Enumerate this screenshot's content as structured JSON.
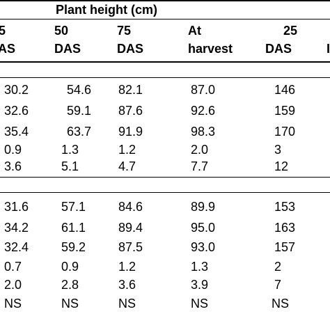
{
  "table": {
    "group_header": "Plant height (cm)",
    "columns": [
      {
        "line1": "5",
        "line2": "DAS"
      },
      {
        "line1": "50",
        "line2": "DAS"
      },
      {
        "line1": "75",
        "line2": "DAS"
      },
      {
        "line1": "At",
        "line2": "harvest"
      },
      {
        "line1": "25",
        "line2": "DAS"
      },
      {
        "line1": "",
        "line2": "I"
      }
    ],
    "sections": [
      {
        "rows": [
          [
            "30.2",
            "54.6",
            "82.1",
            "87.0",
            "146"
          ],
          [
            "32.6",
            "59.1",
            "87.6",
            "92.6",
            "159"
          ],
          [
            "35.4",
            "63.7",
            "91.9",
            "98.3",
            "170"
          ],
          [
            "0.9",
            "1.3",
            "1.2",
            "2.0",
            "3"
          ],
          [
            "3.6",
            "5.1",
            "4.7",
            "7.7",
            "12"
          ]
        ]
      },
      {
        "rows": [
          [
            "31.6",
            "57.1",
            "84.6",
            "89.9",
            "153"
          ],
          [
            "34.2",
            "61.1",
            "89.4",
            "95.0",
            "163"
          ],
          [
            "32.4",
            "59.2",
            "87.5",
            "93.0",
            "157"
          ],
          [
            "0.7",
            "0.9",
            "1.2",
            "1.3",
            "2"
          ],
          [
            "2.0",
            "2.8",
            "3.6",
            "3.9",
            "7"
          ],
          [
            "NS",
            "NS",
            "NS",
            "NS",
            "NS"
          ]
        ]
      }
    ]
  }
}
